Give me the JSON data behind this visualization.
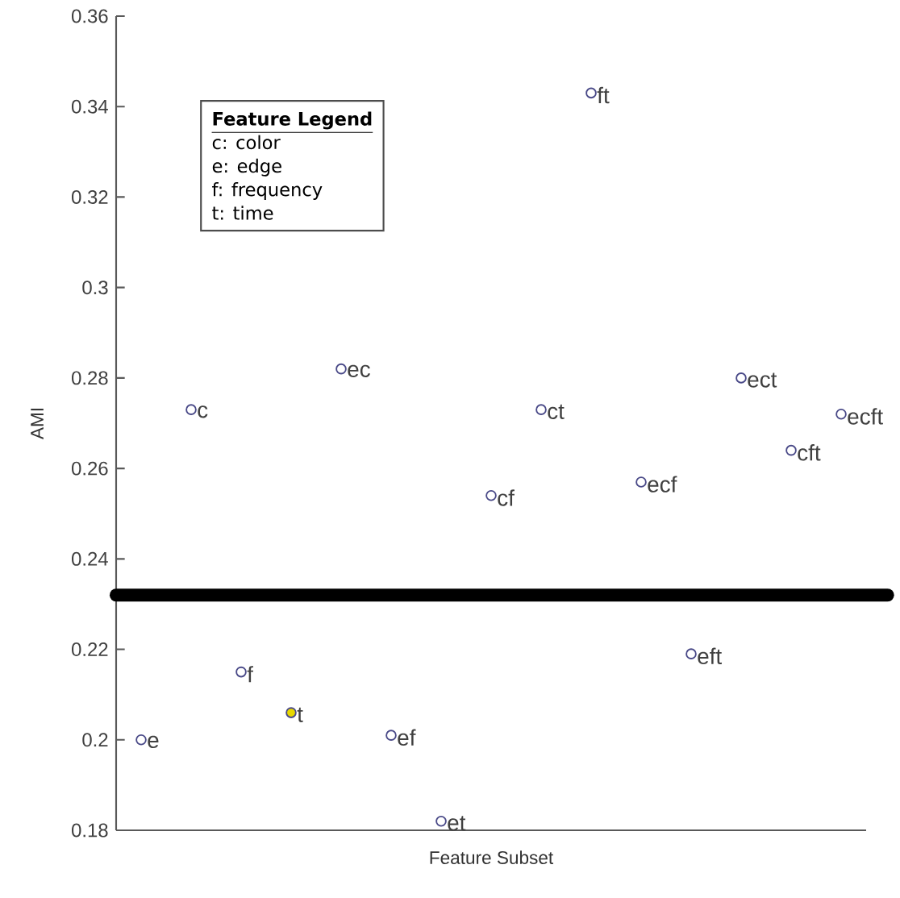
{
  "chart_data": {
    "type": "scatter",
    "xlabel": "Feature Subset",
    "ylabel": "AMI",
    "categories": [
      null,
      null,
      null,
      null,
      null,
      null,
      null,
      null,
      null,
      null,
      null,
      null,
      null,
      null,
      null
    ],
    "values": [
      0.2,
      0.273,
      0.215,
      0.206,
      0.282,
      0.201,
      0.182,
      0.254,
      0.273,
      0.343,
      0.257,
      0.219,
      0.28,
      0.264,
      0.272
    ],
    "value_labels": [
      "e",
      "c",
      "f",
      "t",
      "ec",
      "ef",
      "et",
      "cf",
      "ct",
      "ft",
      "ecf",
      "eft",
      "ect",
      "cft",
      "ecft"
    ],
    "color": "#4a4a88",
    "colors": [
      "#ffffff",
      "#ffffff",
      "#ffffff",
      "#e8d800",
      "#ffffff",
      "#ffffff",
      "#ffffff",
      "#ffffff",
      "#ffffff",
      "#ffffff",
      "#ffffff",
      "#ffffff",
      "#ffffff",
      "#ffffff",
      "#ffffff"
    ],
    "ylim": [
      0.18,
      0.36
    ],
    "yticks": [
      0.18,
      0.2,
      0.22,
      0.24,
      0.26,
      0.28,
      0.3,
      0.32,
      0.34,
      0.36
    ],
    "tick_labels": "y",
    "ref_lines": [
      {
        "axis": "y",
        "value": 0.232,
        "color": "#000000"
      }
    ],
    "annotations": [
      "Feature Legend",
      "c: color",
      "e: edge",
      "f: frequency",
      "t: time"
    ]
  }
}
